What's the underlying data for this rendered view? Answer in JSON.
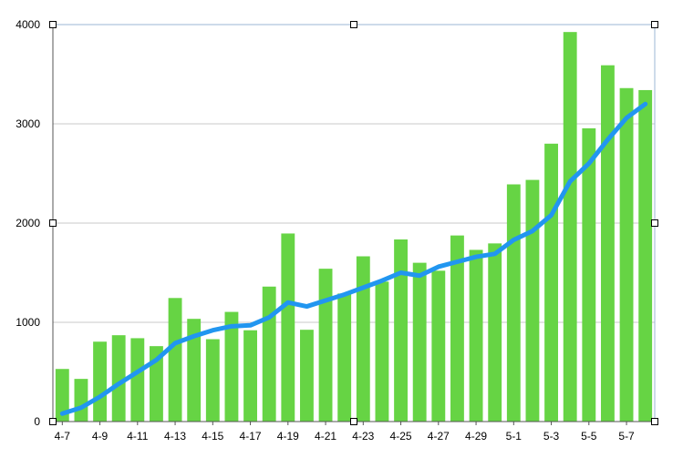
{
  "chart_data": {
    "type": "bar",
    "title": "",
    "xlabel": "",
    "ylabel": "",
    "ylim": [
      0,
      4000
    ],
    "yticks": [
      0,
      1000,
      2000,
      3000,
      4000
    ],
    "ytick_labels": [
      "0",
      "1000",
      "2000",
      "3000",
      "4000"
    ],
    "grid": true,
    "legend": "none",
    "categories": [
      "4-7",
      "4-8",
      "4-9",
      "4-10",
      "4-11",
      "4-12",
      "4-13",
      "4-14",
      "4-15",
      "4-16",
      "4-17",
      "4-18",
      "4-19",
      "4-20",
      "4-21",
      "4-22",
      "4-23",
      "4-24",
      "4-25",
      "4-26",
      "4-27",
      "4-28",
      "4-29",
      "4-30",
      "5-1",
      "5-2",
      "5-3",
      "5-4",
      "5-5",
      "5-6",
      "5-7",
      "5-8"
    ],
    "xtick_labels": [
      "4-7",
      "4-9",
      "4-11",
      "4-13",
      "4-15",
      "4-17",
      "4-19",
      "4-21",
      "4-23",
      "4-25",
      "4-27",
      "4-29",
      "5-1",
      "5-3",
      "5-5",
      "5-7"
    ],
    "series": [
      {
        "type": "bar",
        "color": "#66d444",
        "values": [
          530,
          430,
          805,
          870,
          840,
          760,
          1245,
          1035,
          830,
          1105,
          920,
          1360,
          1895,
          925,
          1540,
          1290,
          1665,
          1410,
          1835,
          1600,
          1520,
          1875,
          1730,
          1795,
          2390,
          2435,
          2800,
          3925,
          2955,
          3590,
          3360,
          3340
        ]
      },
      {
        "type": "line",
        "color": "#2196f0",
        "values": [
          80,
          140,
          250,
          380,
          500,
          620,
          790,
          860,
          920,
          960,
          970,
          1050,
          1200,
          1160,
          1220,
          1280,
          1350,
          1420,
          1500,
          1470,
          1560,
          1610,
          1660,
          1690,
          1830,
          1920,
          2080,
          2420,
          2600,
          2840,
          3060,
          3200
        ]
      }
    ]
  }
}
